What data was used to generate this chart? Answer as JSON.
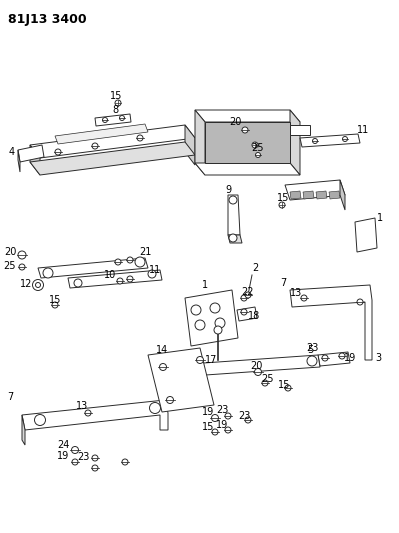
{
  "title": "81J13 3400",
  "bg_color": "#ffffff",
  "line_color": "#2a2a2a",
  "title_fontsize": 9,
  "label_fontsize": 7,
  "fig_w": 3.99,
  "fig_h": 5.33,
  "dpi": 100
}
